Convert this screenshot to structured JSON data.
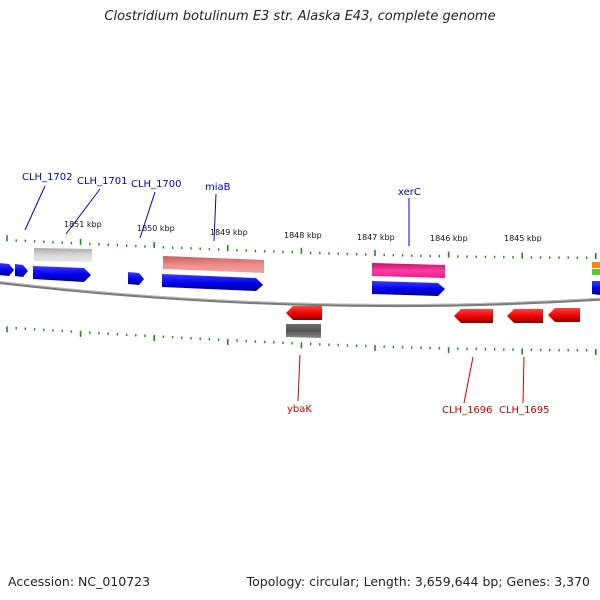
{
  "title": "Clostridium botulinum E3 str. Alaska E43, complete genome",
  "footer": {
    "accession": "Accession: NC_010723",
    "topology": "Topology: circular; Length: 3,659,644 bp; Genes: 3,370"
  },
  "colors": {
    "cds_forward": "#0000ee",
    "cds_reverse": "#ee0000",
    "gene_label_forward": "#0000cc",
    "gene_label_reverse": "#cc0000",
    "tick": "#228822",
    "backbone": "#777777"
  },
  "scale_labels": [
    "1851 kbp",
    "1850 kbp",
    "1849 kbp",
    "1848 kbp",
    "1847 kbp",
    "1846 kbp",
    "1845 kbp"
  ],
  "gene_labels": [
    {
      "name": "CLH_1702",
      "strand": "forward"
    },
    {
      "name": "CLH_1701",
      "strand": "forward"
    },
    {
      "name": "CLH_1700",
      "strand": "forward"
    },
    {
      "name": "miaB",
      "strand": "forward"
    },
    {
      "name": "xerC",
      "strand": "forward"
    },
    {
      "name": "ybaK",
      "strand": "reverse"
    },
    {
      "name": "CLH_1696",
      "strand": "reverse"
    },
    {
      "name": "CLH_1695",
      "strand": "reverse"
    }
  ]
}
